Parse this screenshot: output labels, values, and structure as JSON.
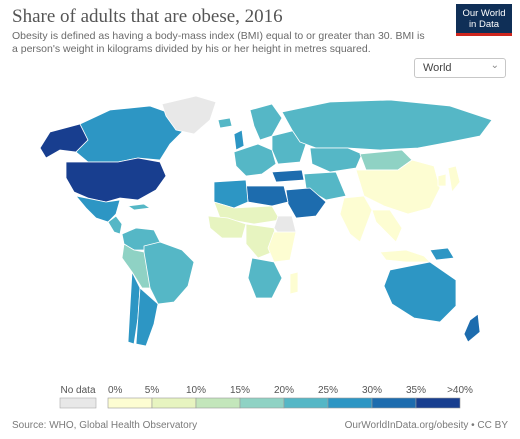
{
  "header": {
    "title": "Share of adults that are obese, 2016",
    "subtitle": "Obesity is defined as having a body-mass index (BMI) equal to or greater than 30. BMI is a person's weight in kilograms divided by his or her height in metres squared."
  },
  "logo": {
    "line1": "Our World",
    "line2": "in Data",
    "bg": "#0f2f57",
    "stripe": "#ce261e"
  },
  "region_select": {
    "value": "World",
    "icon": "chevron-down-icon"
  },
  "colors": {
    "no_data": "#e8e8e8",
    "bins": [
      "#fdfdd2",
      "#e7f4c0",
      "#c3e6bb",
      "#8fd2c4",
      "#55b7c6",
      "#2d96c4",
      "#1d6cae",
      "#183e8f"
    ]
  },
  "legend": {
    "no_data_label": "No data",
    "ticks": [
      "0%",
      "5%",
      "10%",
      "15%",
      "20%",
      "25%",
      "30%",
      "35%",
      ">40%"
    ]
  },
  "map_data": {
    "metric": "Share of adults that are obese",
    "year": 2016,
    "regions": [
      {
        "name": "Alaska",
        "bin": 7
      },
      {
        "name": "Canada",
        "bin": 5
      },
      {
        "name": "Greenland",
        "bin": -1
      },
      {
        "name": "United States",
        "bin": 7
      },
      {
        "name": "Mexico",
        "bin": 5
      },
      {
        "name": "Central America",
        "bin": 4
      },
      {
        "name": "Cuba",
        "bin": 4
      },
      {
        "name": "Colombia / Venezuela",
        "bin": 4
      },
      {
        "name": "Brazil",
        "bin": 4
      },
      {
        "name": "Peru / Bolivia",
        "bin": 3
      },
      {
        "name": "Chile",
        "bin": 5
      },
      {
        "name": "Argentina",
        "bin": 5
      },
      {
        "name": "Iceland",
        "bin": 4
      },
      {
        "name": "United Kingdom",
        "bin": 5
      },
      {
        "name": "Scandinavia",
        "bin": 4
      },
      {
        "name": "Western Europe",
        "bin": 4
      },
      {
        "name": "Eastern Europe",
        "bin": 4
      },
      {
        "name": "Russia",
        "bin": 4
      },
      {
        "name": "Kazakhstan",
        "bin": 4
      },
      {
        "name": "Mongolia",
        "bin": 3
      },
      {
        "name": "China",
        "bin": 0
      },
      {
        "name": "Japan",
        "bin": 0
      },
      {
        "name": "Korea",
        "bin": 0
      },
      {
        "name": "India",
        "bin": 0
      },
      {
        "name": "Southeast Asia",
        "bin": 0
      },
      {
        "name": "Indonesia",
        "bin": 0
      },
      {
        "name": "Papua New Guinea",
        "bin": 5
      },
      {
        "name": "Australia",
        "bin": 5
      },
      {
        "name": "New Zealand",
        "bin": 6
      },
      {
        "name": "Turkey",
        "bin": 6
      },
      {
        "name": "Iran / Central Asia",
        "bin": 4
      },
      {
        "name": "Saudi Arabia",
        "bin": 6
      },
      {
        "name": "Egypt / Libya",
        "bin": 6
      },
      {
        "name": "Algeria / Morocco",
        "bin": 5
      },
      {
        "name": "Sahel",
        "bin": 1
      },
      {
        "name": "West Africa",
        "bin": 1
      },
      {
        "name": "Somalia",
        "bin": -1
      },
      {
        "name": "Central Africa",
        "bin": 1
      },
      {
        "name": "East Africa",
        "bin": 0
      },
      {
        "name": "Southern Africa",
        "bin": 4
      },
      {
        "name": "Madagascar",
        "bin": 0
      }
    ]
  },
  "footer": {
    "source": "Source: WHO, Global Health Observatory",
    "credit": "OurWorldInData.org/obesity • CC BY"
  }
}
